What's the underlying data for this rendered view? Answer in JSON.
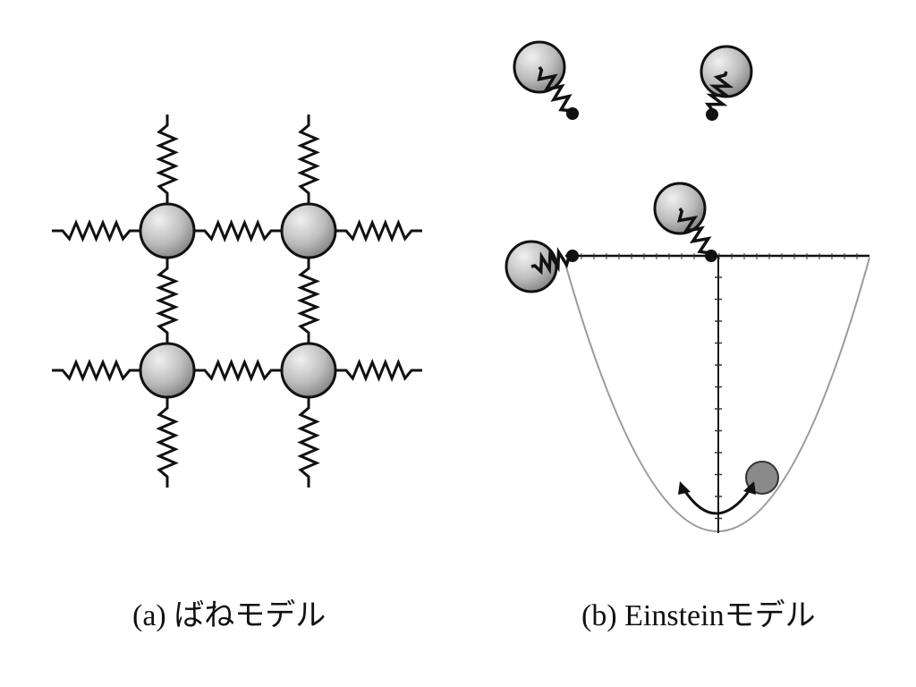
{
  "panel_a": {
    "caption": "(a)  ばねモデル",
    "grid": {
      "rows": 2,
      "cols": 2
    }
  },
  "panel_b": {
    "caption": "(b) Einsteinモデル",
    "atom_count": 5
  },
  "colors": {
    "ink": "#111111",
    "ball_light": "#e6e6e6",
    "ball_dark": "#8c8c8c",
    "parabola": "#999999",
    "moving_ball": "#808080"
  }
}
